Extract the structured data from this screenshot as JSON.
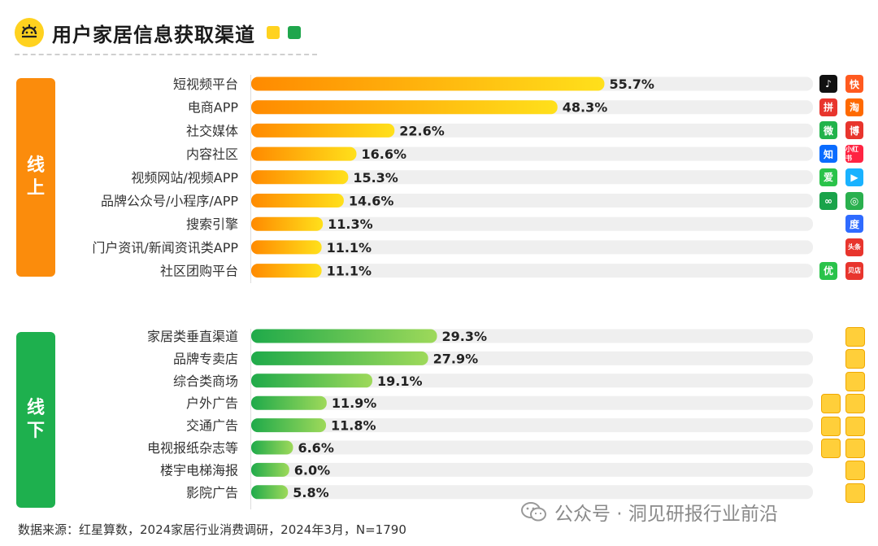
{
  "header": {
    "title": "用户家居信息获取渠道"
  },
  "colors": {
    "online_start": "#ff8a00",
    "online_end": "#ffe01b",
    "offline_start": "#1faa4a",
    "offline_end": "#9ed95a",
    "label_online": "#fb8c0c",
    "label_offline": "#1eb04e",
    "track": "#efefef"
  },
  "groups": {
    "online": {
      "label_line1": "线",
      "label_line2": "上"
    },
    "offline": {
      "label_line1": "线",
      "label_line2": "下"
    }
  },
  "chart_data": {
    "type": "bar",
    "orientation": "horizontal",
    "title": "用户家居信息获取渠道",
    "unit": "%",
    "xlim": [
      0,
      100
    ],
    "series": [
      {
        "name": "线上",
        "categories": [
          "短视频平台",
          "电商APP",
          "社交媒体",
          "内容社区",
          "视频网站/视频APP",
          "品牌公众号/小程序/APP",
          "搜索引擎",
          "门户资讯/新闻资讯类APP",
          "社区团购平台"
        ],
        "values": [
          55.7,
          48.3,
          22.6,
          16.6,
          15.3,
          14.6,
          11.3,
          11.1,
          11.1
        ],
        "value_labels": [
          "55.7%",
          "48.3%",
          "22.6%",
          "16.6%",
          "15.3%",
          "14.6%",
          "11.3%",
          "11.1%",
          "11.1%"
        ]
      },
      {
        "name": "线下",
        "categories": [
          "家居类垂直渠道",
          "品牌专卖店",
          "综合类商场",
          "户外广告",
          "交通广告",
          "电视报纸杂志等",
          "楼宇电梯海报",
          "影院广告"
        ],
        "values": [
          29.3,
          27.9,
          19.1,
          11.9,
          11.8,
          6.6,
          6.0,
          5.8
        ],
        "value_labels": [
          "29.3%",
          "27.9%",
          "19.1%",
          "11.9%",
          "11.8%",
          "6.6%",
          "6.0%",
          "5.8%"
        ]
      }
    ]
  },
  "icons": {
    "online": [
      [
        "douyin-icon",
        "kuaishou-icon"
      ],
      [
        "pinduoduo-icon",
        "taobao-icon"
      ],
      [
        "wechat-icon",
        "weibo-icon"
      ],
      [
        "zhihu-icon",
        "xiaohongshu-icon"
      ],
      [
        "iqiyi-icon",
        "tencent-video-icon"
      ],
      [
        "miniprogram-icon",
        "app-icon"
      ],
      [
        "baidu-icon"
      ],
      [
        "toutiao-icon"
      ],
      [
        "meituan-icon",
        "beidian-icon"
      ]
    ],
    "online_glyphs": [
      [
        "♪",
        "快"
      ],
      [
        "拼",
        "淘"
      ],
      [
        "微",
        "博"
      ],
      [
        "知",
        "小红书"
      ],
      [
        "爱",
        "▶"
      ],
      [
        "∞",
        "◎"
      ],
      [
        "度"
      ],
      [
        "头条"
      ],
      [
        "优",
        "贝店"
      ]
    ]
  },
  "footer": {
    "source": "数据来源：红星算数，2024家居行业消费调研，2024年3月，N=1790",
    "watermark": "公众号 · 洞见研报行业前沿"
  }
}
